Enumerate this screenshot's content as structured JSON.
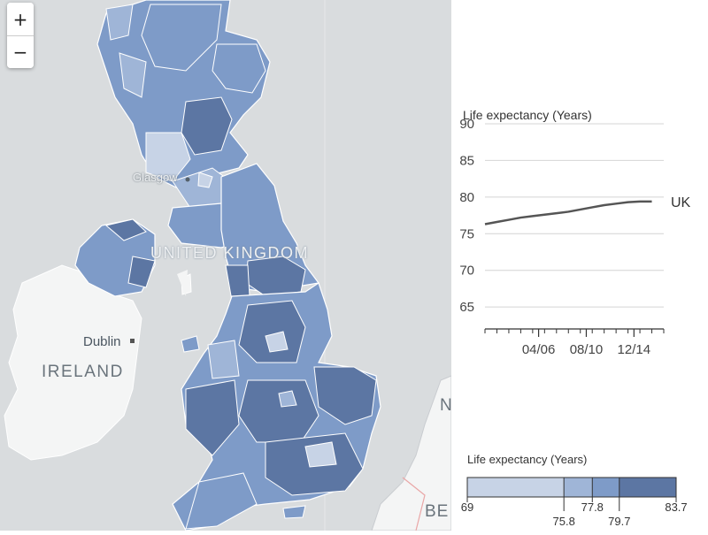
{
  "map": {
    "zoom_in_label": "+",
    "zoom_out_label": "−",
    "labels": {
      "united_kingdom": "UNITED KINGDOM",
      "ireland": "IRELAND",
      "dublin": "Dublin",
      "glasgow": "Glasgow",
      "edge_top": "N",
      "edge_bottom": "BE"
    },
    "colors": {
      "sea": "#d9dcde",
      "land_other": "#f4f5f5",
      "region_lightest": "#c7d3e6",
      "region_light": "#9fb5d7",
      "region_mid": "#7e9bc8",
      "region_dark": "#5c76a3",
      "border": "#ffffff"
    }
  },
  "chart_data": {
    "type": "line",
    "ylabel": "Life expectancy (Years)",
    "x_ticks": [
      "04/06",
      "08/10",
      "12/14"
    ],
    "ylim": [
      62,
      90
    ],
    "y_ticks": [
      65,
      70,
      75,
      80,
      85,
      90
    ],
    "series": [
      {
        "name": "UK",
        "color": "#555555",
        "x": [
          2000,
          2001,
          2002,
          2003,
          2004,
          2005,
          2006,
          2007,
          2008,
          2009,
          2010,
          2011,
          2012,
          2013,
          2014
        ],
        "values": [
          76.3,
          76.6,
          76.9,
          77.2,
          77.4,
          77.6,
          77.8,
          78.0,
          78.3,
          78.6,
          78.9,
          79.1,
          79.3,
          79.4,
          79.4
        ]
      }
    ],
    "grid": true
  },
  "legend": {
    "title": "Life expectancy (Years)",
    "thresholds": [
      "69",
      "75.8",
      "77.8",
      "79.7",
      "83.7"
    ],
    "threshold_values": [
      69,
      75.8,
      77.8,
      79.7,
      83.7
    ],
    "colors": [
      "#c7d3e6",
      "#9fb5d7",
      "#7e9bc8",
      "#5c76a3"
    ]
  }
}
